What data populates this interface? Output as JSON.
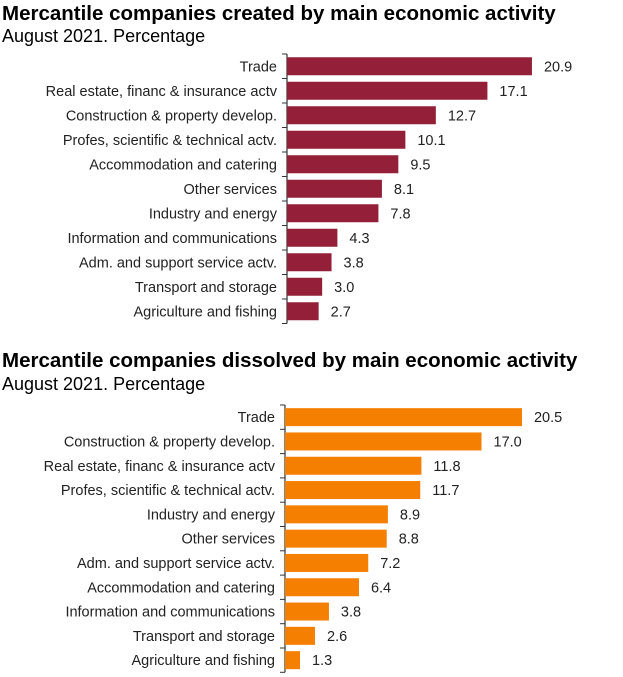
{
  "chart_data": [
    {
      "type": "bar",
      "orientation": "horizontal",
      "title": "Mercantile companies created by main economic activity",
      "subtitle": "August 2021. Percentage",
      "color": "#931f38",
      "categories": [
        "Trade",
        "Real estate, financ & insurance actv",
        "Construction & property develop.",
        "Profes, scientific & technical actv.",
        "Accommodation and catering",
        "Other services",
        "Industry and energy",
        "Information and communications",
        "Adm. and support service actv.",
        "Transport and storage",
        "Agriculture and fishing"
      ],
      "values": [
        20.9,
        17.1,
        12.7,
        10.1,
        9.5,
        8.1,
        7.8,
        4.3,
        3.8,
        3.0,
        2.7
      ],
      "labels": [
        "20.9",
        "17.1",
        "12.7",
        "10.1",
        "9.5",
        "8.1",
        "7.8",
        "4.3",
        "3.8",
        "3.0",
        "2.7"
      ],
      "xlim": [
        0,
        21
      ],
      "grid": false
    },
    {
      "type": "bar",
      "orientation": "horizontal",
      "title": "Mercantile companies dissolved by main economic activity",
      "subtitle": "August 2021. Percentage",
      "color": "#f57f00",
      "categories": [
        "Trade",
        "Construction & property develop.",
        "Real estate, financ & insurance actv",
        "Profes, scientific & technical actv.",
        "Industry and energy",
        "Other services",
        "Adm. and support service actv.",
        "Accommodation and catering",
        "Information and communications",
        "Transport and storage",
        "Agriculture and fishing"
      ],
      "values": [
        20.5,
        17.0,
        11.8,
        11.7,
        8.9,
        8.8,
        7.2,
        6.4,
        3.8,
        2.6,
        1.3
      ],
      "labels": [
        "20.5",
        "17.0",
        "11.8",
        "11.7",
        "8.9",
        "8.8",
        "7.2",
        "6.4",
        "3.8",
        "2.6",
        "1.3"
      ],
      "xlim": [
        0,
        21
      ],
      "grid": false
    }
  ]
}
